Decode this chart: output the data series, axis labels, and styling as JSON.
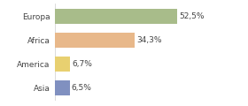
{
  "categories": [
    "Europa",
    "Africa",
    "America",
    "Asia"
  ],
  "values": [
    52.5,
    34.3,
    6.7,
    6.5
  ],
  "labels": [
    "52,5%",
    "34,3%",
    "6,7%",
    "6,5%"
  ],
  "bar_colors": [
    "#a8bc8a",
    "#e8b88a",
    "#e8d070",
    "#8090c0"
  ],
  "background_color": "#ffffff",
  "xlim": [
    0,
    70
  ],
  "label_fontsize": 6.5,
  "tick_fontsize": 6.5,
  "bar_height": 0.62
}
